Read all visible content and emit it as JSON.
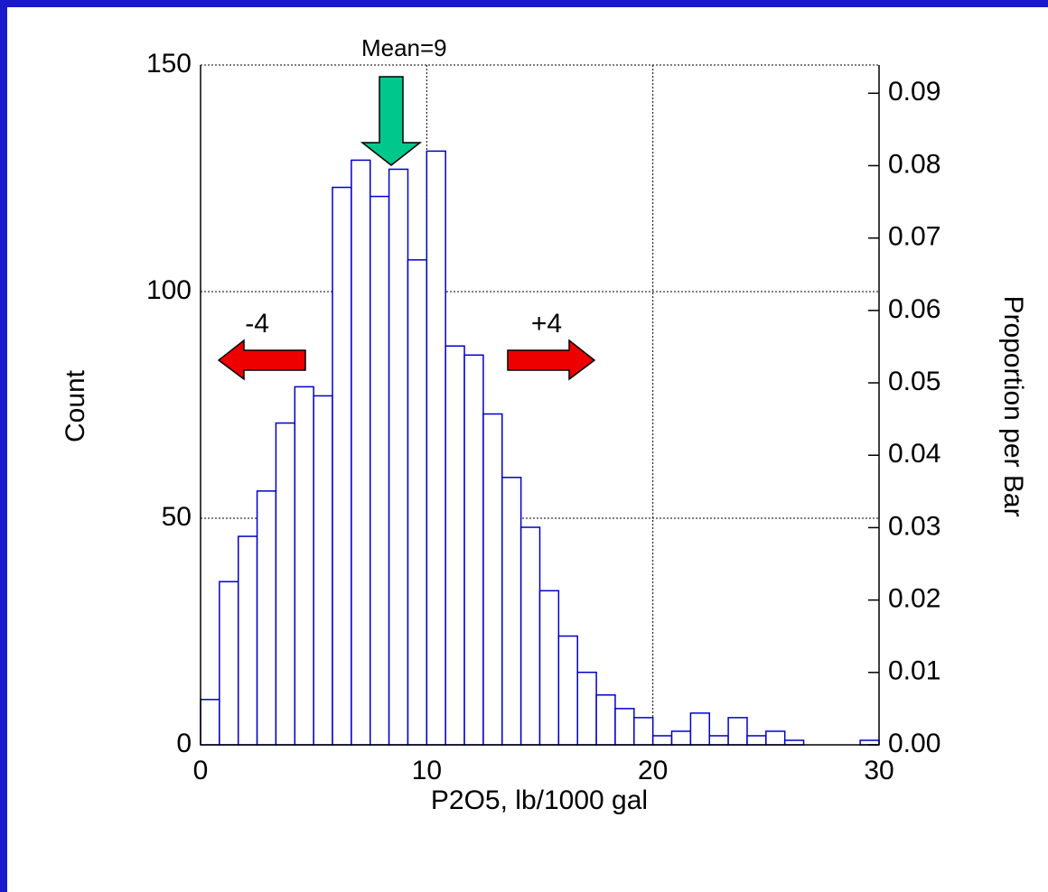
{
  "chart_data": {
    "type": "histogram",
    "x_label": "P2O5, lb/1000 gal",
    "y_label": "Count",
    "y2_label": "Proportion per Bar",
    "bins": [
      0,
      0.833,
      1.667,
      2.5,
      3.333,
      4.167,
      5,
      5.833,
      6.667,
      7.5,
      8.333,
      9.167,
      10,
      10.833,
      11.667,
      12.5,
      13.333,
      14.167,
      15,
      15.833,
      16.667,
      17.5,
      18.333,
      19.167,
      20,
      20.833,
      21.667,
      22.5,
      23.333,
      24.167,
      25,
      25.833,
      26.667,
      27.5,
      28.333,
      29.167,
      30
    ],
    "values": [
      10,
      36,
      46,
      56,
      71,
      79,
      77,
      123,
      129,
      121,
      127,
      107,
      131,
      88,
      86,
      73,
      59,
      48,
      34,
      24,
      16,
      11,
      8,
      6,
      2,
      3,
      7,
      2,
      6,
      2,
      3,
      1,
      0,
      0,
      0,
      1
    ],
    "color": "#0000cc",
    "xlim": [
      0,
      30
    ],
    "xticks": [
      0,
      10,
      20,
      30
    ],
    "ylim": [
      0,
      150
    ],
    "yticks": [
      0,
      50,
      100,
      150
    ],
    "y2lim": [
      0,
      0.0939
    ],
    "y2ticks": [
      {
        "value": 0,
        "label": "0.00"
      },
      0.01,
      0.02,
      0.03,
      0.04,
      0.05,
      0.06,
      0.07,
      0.08,
      0.09
    ],
    "grid": true,
    "annotations": [
      {
        "text": "Mean=9",
        "x": 9
      },
      {
        "text": "-4",
        "x": 2.5
      },
      {
        "text": "+4",
        "x": 15.3
      }
    ]
  }
}
